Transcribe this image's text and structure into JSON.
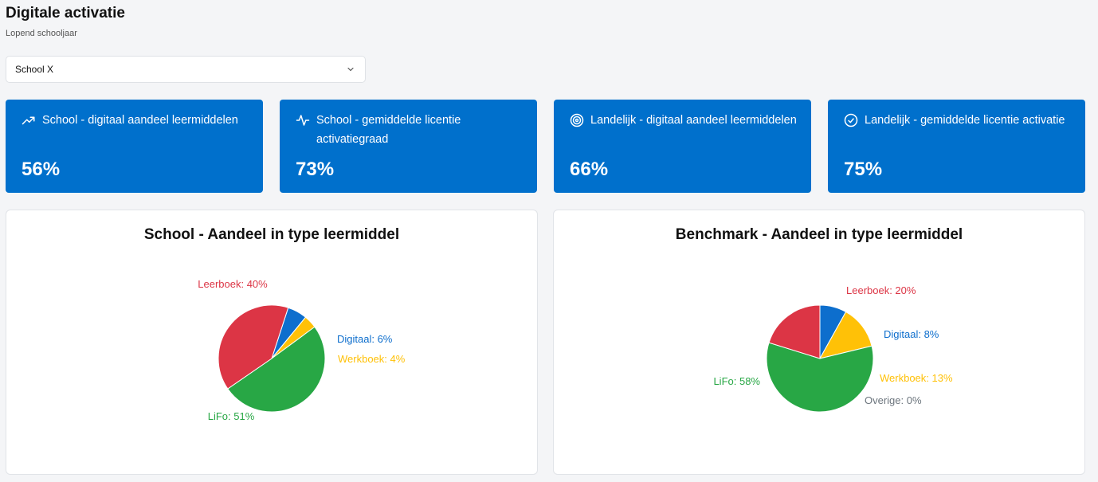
{
  "header": {
    "title": "Digitale activatie",
    "subtitle": "Lopend schooljaar"
  },
  "school_select": {
    "value": "School X",
    "icon": "chevron-down-icon"
  },
  "kpis": [
    {
      "icon": "trending-up-icon",
      "label": "School - digitaal aandeel leermiddelen",
      "value": "56%"
    },
    {
      "icon": "activity-icon",
      "label": "School - gemiddelde licentie activatiegraad",
      "value": "73%"
    },
    {
      "icon": "target-icon",
      "label": "Landelijk - digitaal aandeel leermiddelen",
      "value": "66%"
    },
    {
      "icon": "check-circle-icon",
      "label": "Landelijk - gemiddelde licentie activatie",
      "value": "75%"
    }
  ],
  "colors": {
    "accent": "#0070cc",
    "leerboek": "#dc3545",
    "digitaal": "#0d6ecd",
    "werkboek": "#ffc107",
    "lifo": "#28a745",
    "overige": "#6c757d"
  },
  "chart_data": [
    {
      "type": "pie",
      "title": "School - Aandeel in type leermiddel",
      "slices": [
        {
          "name": "Digitaal",
          "value": 6,
          "label": "Digitaal: 6%",
          "color": "#0d6ecd"
        },
        {
          "name": "Werkboek",
          "value": 4,
          "label": "Werkboek: 4%",
          "color": "#ffc107"
        },
        {
          "name": "LiFo",
          "value": 51,
          "label": "LiFo: 51%",
          "color": "#28a745"
        },
        {
          "name": "Leerboek",
          "value": 40,
          "label": "Leerboek: 40%",
          "color": "#dc3545"
        }
      ]
    },
    {
      "type": "pie",
      "title": "Benchmark - Aandeel in type leermiddel",
      "slices": [
        {
          "name": "Digitaal",
          "value": 8,
          "label": "Digitaal: 8%",
          "color": "#0d6ecd"
        },
        {
          "name": "Werkboek",
          "value": 13,
          "label": "Werkboek: 13%",
          "color": "#ffc107"
        },
        {
          "name": "Overige",
          "value": 0,
          "label": "Overige: 0%",
          "color": "#6c757d"
        },
        {
          "name": "LiFo",
          "value": 58,
          "label": "LiFo: 58%",
          "color": "#28a745"
        },
        {
          "name": "Leerboek",
          "value": 20,
          "label": "Leerboek: 20%",
          "color": "#dc3545"
        }
      ]
    }
  ]
}
